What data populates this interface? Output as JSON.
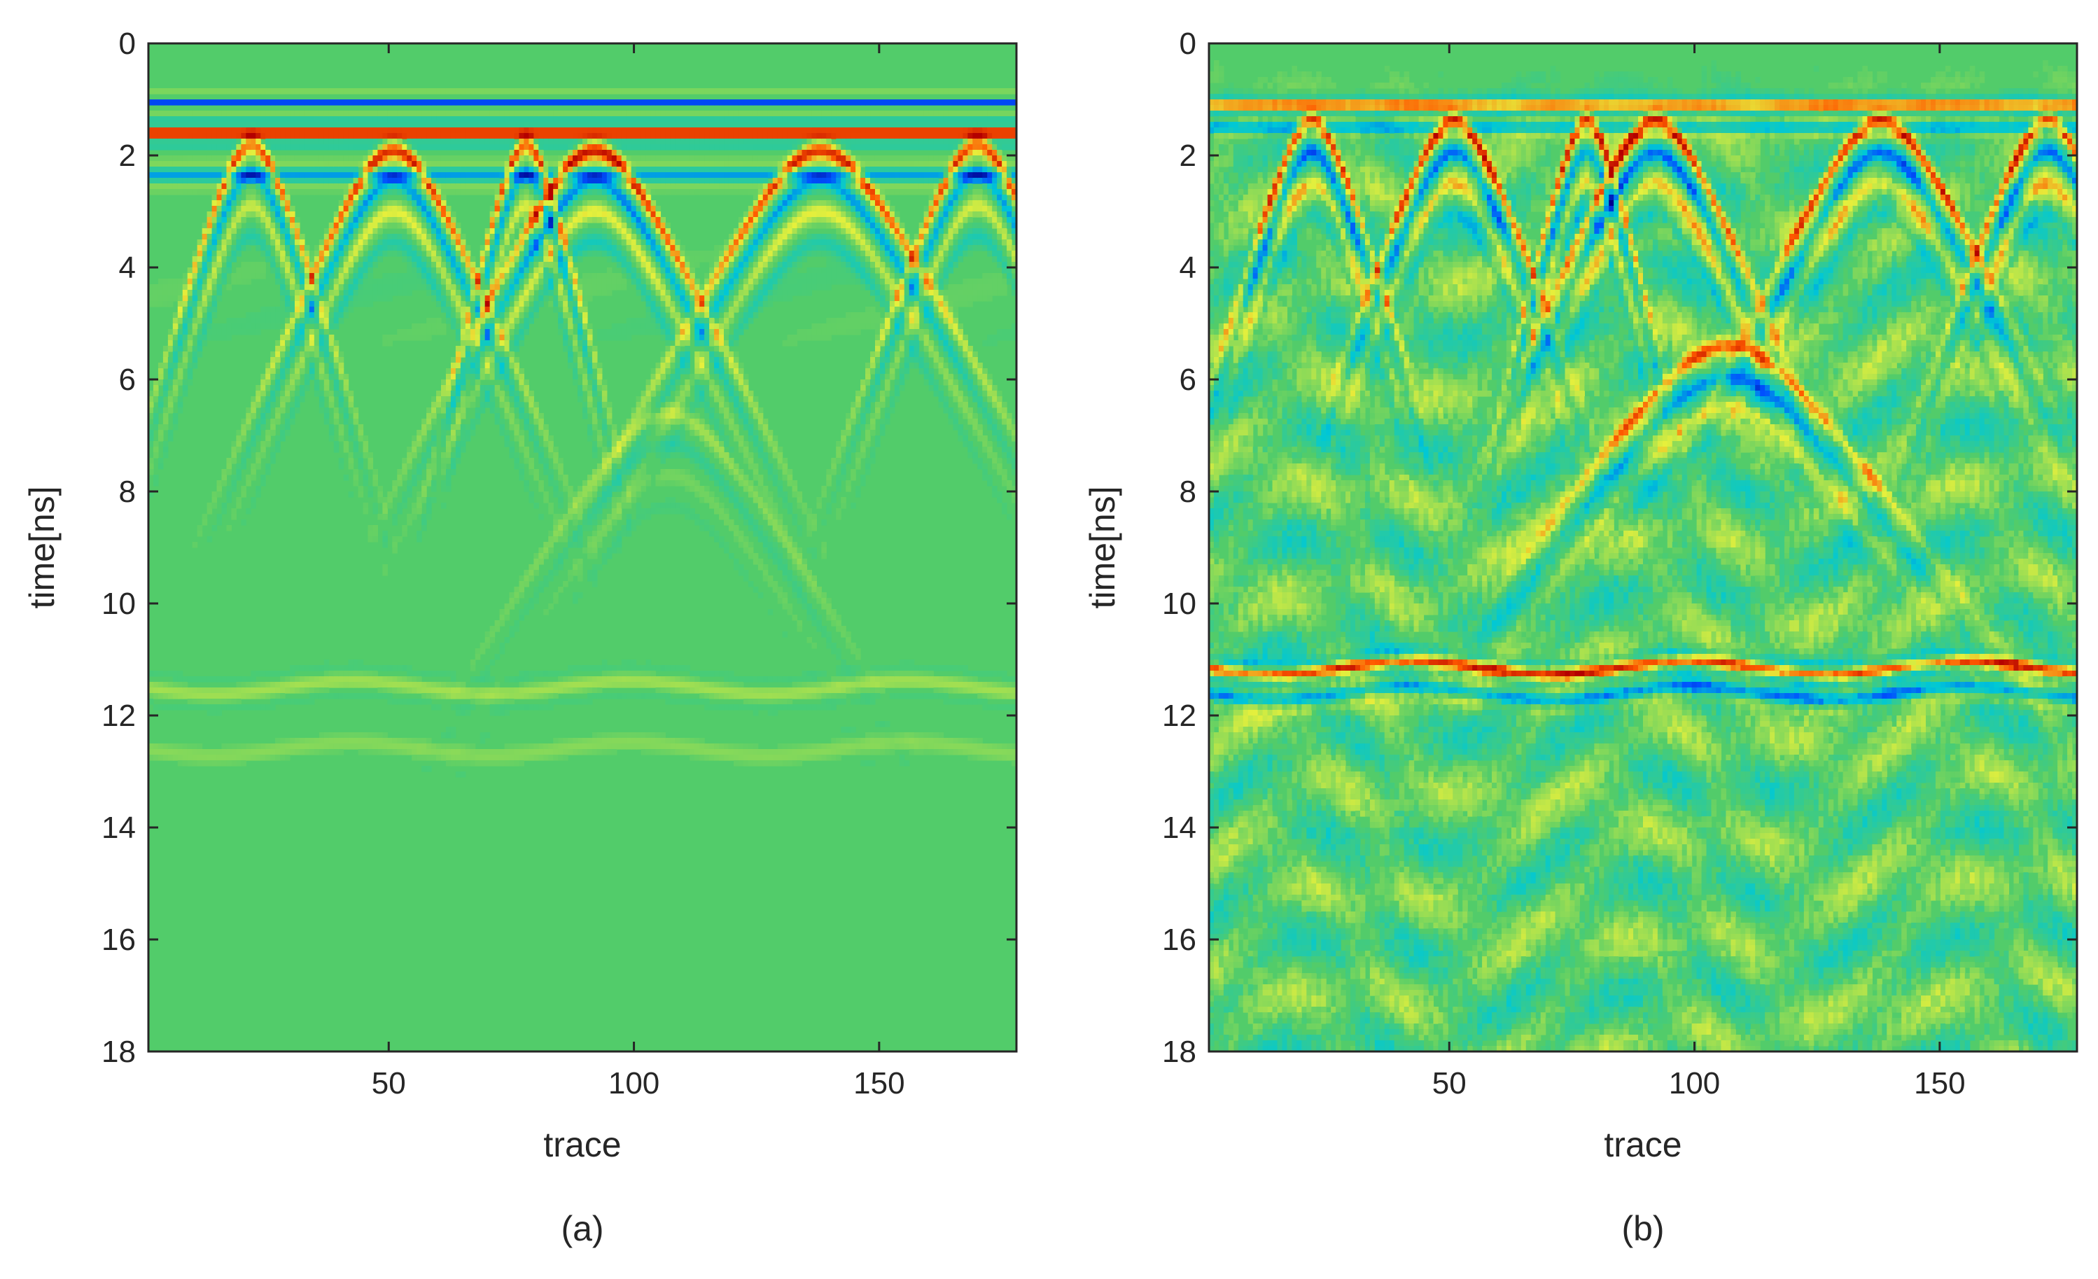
{
  "colors": {
    "background": "#ffffff",
    "frame": "#262626",
    "baseline_field": "#52cc6a",
    "colormap": [
      "#00008f",
      "#0050ff",
      "#00c8d6",
      "#52cc6a",
      "#e6f03c",
      "#ff5a00",
      "#b40000"
    ]
  },
  "chart_data": [
    {
      "type": "heatmap",
      "id": "a",
      "panel_label": "(a)",
      "title": "",
      "xlabel": "trace",
      "ylabel": "time[ns]",
      "xlim": [
        1,
        178
      ],
      "ylim": [
        0,
        18
      ],
      "y_reversed": true,
      "xticks": [
        50,
        100,
        150
      ],
      "yticks": [
        0,
        2,
        4,
        6,
        8,
        10,
        12,
        14,
        16,
        18
      ],
      "colormap": "jet",
      "color_range": [
        -1,
        1
      ],
      "gain": 0.0,
      "events": [
        {
          "kind": "direct_wave",
          "t": 1.05,
          "amplitude": -0.7,
          "width": 0.14,
          "traces": [
            1,
            178
          ]
        },
        {
          "kind": "direct_wave",
          "t": 1.6,
          "amplitude": 1.0,
          "width": 0.18,
          "traces": [
            1,
            178
          ]
        },
        {
          "kind": "direct_wave",
          "t": 2.35,
          "amplitude": -0.45,
          "width": 0.2,
          "traces": [
            1,
            178
          ]
        },
        {
          "kind": "hyperbola",
          "apex_trace": 22,
          "apex_t": 1.8,
          "half_width": 5,
          "amplitude": 0.75
        },
        {
          "kind": "hyperbola",
          "apex_trace": 51,
          "apex_t": 1.9,
          "half_width": 7,
          "amplitude": 0.85
        },
        {
          "kind": "hyperbola",
          "apex_trace": 78,
          "apex_t": 1.8,
          "half_width": 4,
          "amplitude": 0.8
        },
        {
          "kind": "hyperbola",
          "apex_trace": 92,
          "apex_t": 1.9,
          "half_width": 8,
          "amplitude": 0.95
        },
        {
          "kind": "hyperbola",
          "apex_trace": 138,
          "apex_t": 1.9,
          "half_width": 9,
          "amplitude": 0.85
        },
        {
          "kind": "hyperbola",
          "apex_trace": 170,
          "apex_t": 1.8,
          "half_width": 6,
          "amplitude": 0.8
        },
        {
          "kind": "hyperbola",
          "apex_trace": 107,
          "apex_t": 6.6,
          "half_width": 10,
          "amplitude": 0.2
        },
        {
          "kind": "interface",
          "t": 11.5,
          "amplitude": 0.18,
          "width": 0.25,
          "traces": [
            1,
            178
          ]
        },
        {
          "kind": "interface",
          "t": 12.6,
          "amplitude": 0.12,
          "width": 0.3,
          "traces": [
            1,
            178
          ]
        }
      ]
    },
    {
      "type": "heatmap",
      "id": "b",
      "panel_label": "(b)",
      "title": "",
      "xlabel": "trace",
      "ylabel": "time[ns]",
      "xlim": [
        1,
        178
      ],
      "ylim": [
        0,
        18
      ],
      "y_reversed": true,
      "xticks": [
        50,
        100,
        150
      ],
      "yticks": [
        0,
        2,
        4,
        6,
        8,
        10,
        12,
        14,
        16,
        18
      ],
      "colormap": "jet",
      "color_range": [
        -1,
        1
      ],
      "gain": 1.0,
      "events": [
        {
          "kind": "direct_wave",
          "t": 1.1,
          "amplitude": 0.75,
          "width": 0.15,
          "traces": [
            1,
            178
          ]
        },
        {
          "kind": "direct_wave",
          "t": 1.5,
          "amplitude": -0.45,
          "width": 0.15,
          "traces": [
            1,
            178
          ]
        },
        {
          "kind": "hyperbola",
          "apex_trace": 22,
          "apex_t": 1.4,
          "half_width": 5,
          "amplitude": 0.9
        },
        {
          "kind": "hyperbola",
          "apex_trace": 51,
          "apex_t": 1.4,
          "half_width": 6,
          "amplitude": 0.95
        },
        {
          "kind": "hyperbola",
          "apex_trace": 78,
          "apex_t": 1.4,
          "half_width": 4,
          "amplitude": 0.9
        },
        {
          "kind": "hyperbola",
          "apex_trace": 92,
          "apex_t": 1.4,
          "half_width": 7,
          "amplitude": 1.0
        },
        {
          "kind": "hyperbola",
          "apex_trace": 138,
          "apex_t": 1.4,
          "half_width": 8,
          "amplitude": 0.95
        },
        {
          "kind": "hyperbola",
          "apex_trace": 172,
          "apex_t": 1.4,
          "half_width": 6,
          "amplitude": 0.9
        },
        {
          "kind": "hyperbola",
          "apex_trace": 107,
          "apex_t": 5.4,
          "half_width": 12,
          "amplitude": 0.7
        },
        {
          "kind": "interface",
          "t": 11.15,
          "amplitude": 0.75,
          "width": 0.18,
          "traces": [
            1,
            178
          ]
        },
        {
          "kind": "interface",
          "t": 11.6,
          "amplitude": -0.45,
          "width": 0.2,
          "traces": [
            1,
            178
          ]
        }
      ]
    }
  ]
}
